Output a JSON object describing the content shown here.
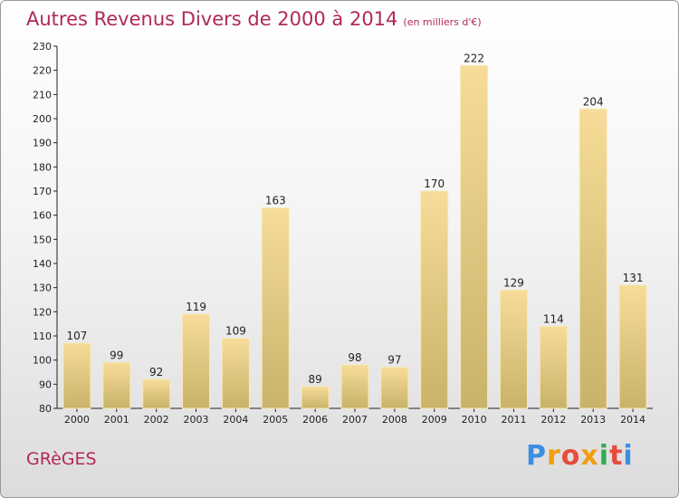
{
  "title": "Autres Revenus Divers de 2000 à 2014",
  "subtitle": "(en milliers d'€)",
  "place_name": "GRèGES",
  "logo_text": "Proxiti",
  "colors": {
    "title": "#b0295a",
    "bar_light": "#f6dc98",
    "bar_dark": "#c9b26a",
    "axis": "#222222"
  },
  "chart_data": {
    "type": "bar",
    "title": "Autres Revenus Divers de 2000 à 2014",
    "subtitle": "(en milliers d'€)",
    "categories": [
      "2000",
      "2001",
      "2002",
      "2003",
      "2004",
      "2005",
      "2006",
      "2007",
      "2008",
      "2009",
      "2010",
      "2011",
      "2012",
      "2013",
      "2014"
    ],
    "values": [
      107,
      99,
      92,
      119,
      109,
      163,
      89,
      98,
      97,
      170,
      222,
      129,
      114,
      204,
      131
    ],
    "ylim": [
      80,
      230
    ],
    "yticks": [
      80,
      90,
      100,
      110,
      120,
      130,
      140,
      150,
      160,
      170,
      180,
      190,
      200,
      210,
      220,
      230
    ],
    "grid": false,
    "data_labels": true
  }
}
